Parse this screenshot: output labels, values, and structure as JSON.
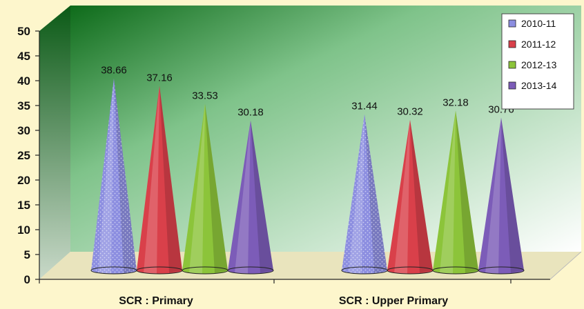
{
  "chart_data": {
    "type": "bar",
    "shape": "cone",
    "categories": [
      "SCR : Primary",
      "SCR : Upper Primary"
    ],
    "series": [
      {
        "name": "2010-11",
        "values": [
          38.66,
          31.44
        ],
        "color": "#8c8ee0"
      },
      {
        "name": "2011-12",
        "values": [
          37.16,
          30.32
        ],
        "color": "#d9404a"
      },
      {
        "name": "2012-13",
        "values": [
          33.53,
          32.18
        ],
        "color": "#8cc43a"
      },
      {
        "name": "2013-14",
        "values": [
          30.18,
          30.76
        ],
        "color": "#7c5cb8"
      }
    ],
    "ylim": [
      0,
      50
    ],
    "yticks": [
      "0",
      "5",
      "10",
      "15",
      "20",
      "25",
      "30",
      "35",
      "40",
      "45",
      "50"
    ],
    "legend": "top-right",
    "grid": false,
    "background_color": "#fdf6cc",
    "wall_color_dark": "#0e6b1a",
    "wall_color_light": "#ffffff"
  }
}
